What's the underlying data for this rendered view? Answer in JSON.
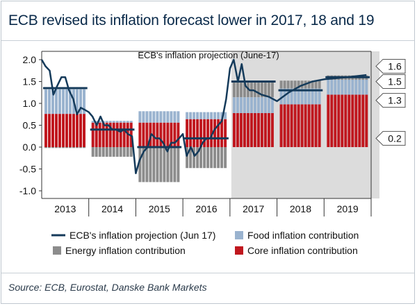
{
  "title": "ECB revised its inflation forecast lower in 2017, 18 and 19",
  "source": "Source: ECB, Eurostat, Danske Bank Markets",
  "colors": {
    "core": "#c0171e",
    "food": "#9ab3cf",
    "energy": "#8c8c8c",
    "line": "#143a5a",
    "forecast_shade": "#dcdcdc"
  },
  "chart_data": {
    "type": "bar",
    "title": "ECB's inflation projection (June-17)",
    "ylim": [
      -1.0,
      2.0
    ],
    "yticks": [
      "2.0",
      "1.5",
      "1.0",
      "0.5",
      "0.0",
      "-0.5",
      "-1.0"
    ],
    "ytick_values": [
      2.0,
      1.5,
      1.0,
      0.5,
      0.0,
      -0.5,
      -1.0
    ],
    "categories": [
      "2013",
      "2014",
      "2015",
      "2016",
      "2017",
      "2018",
      "2019"
    ],
    "forecast_start": "2017",
    "legend": [
      {
        "name": "ECB's inflation projection (Jun 17)",
        "kind": "line"
      },
      {
        "name": "Food inflation contribution",
        "kind": "food"
      },
      {
        "name": "Energy inflation contribution",
        "kind": "energy"
      },
      {
        "name": "Core inflation contribution",
        "kind": "core"
      }
    ],
    "series": [
      {
        "name": "Core inflation contribution",
        "values": [
          0.76,
          0.56,
          0.56,
          0.64,
          0.78,
          0.98,
          1.2
        ]
      },
      {
        "name": "Food inflation contribution",
        "values": [
          0.56,
          0.04,
          0.26,
          0.16,
          0.36,
          0.36,
          0.34
        ]
      },
      {
        "name": "Energy inflation contribution",
        "values": [
          -0.02,
          -0.22,
          -0.8,
          -0.48,
          0.38,
          0.18,
          0.1
        ]
      }
    ],
    "annual_projection": [
      1.35,
      0.4,
      0.0,
      0.2,
      1.5,
      1.3,
      1.6
    ],
    "projection_labels": [
      {
        "text": "1.6",
        "y": 1.6
      },
      {
        "text": "1.5",
        "y": 1.5
      },
      {
        "text": "1.3",
        "y": 1.3
      },
      {
        "text": "0.2",
        "y": 0.2
      }
    ],
    "monthly_inflation": {
      "x": [
        2013.0,
        2013.08,
        2013.17,
        2013.25,
        2013.33,
        2013.42,
        2013.5,
        2013.58,
        2013.67,
        2013.75,
        2013.83,
        2013.92,
        2014.0,
        2014.08,
        2014.17,
        2014.25,
        2014.33,
        2014.42,
        2014.5,
        2014.58,
        2014.67,
        2014.75,
        2014.83,
        2014.92,
        2015.0,
        2015.08,
        2015.17,
        2015.25,
        2015.33,
        2015.42,
        2015.5,
        2015.58,
        2015.67,
        2015.75,
        2015.83,
        2015.92,
        2016.0,
        2016.08,
        2016.17,
        2016.25,
        2016.33,
        2016.42,
        2016.5,
        2016.58,
        2016.67,
        2016.75,
        2016.83,
        2016.92,
        2017.0,
        2017.08,
        2017.17,
        2017.25,
        2017.33,
        2017.42,
        2017.5,
        2017.67,
        2017.83,
        2018.0,
        2018.25,
        2018.5,
        2018.75,
        2019.0,
        2019.5,
        2019.9
      ],
      "y": [
        2.0,
        1.85,
        1.75,
        1.2,
        1.4,
        1.6,
        1.6,
        1.3,
        1.1,
        0.75,
        0.9,
        0.85,
        0.8,
        0.7,
        0.5,
        0.7,
        0.5,
        0.5,
        0.4,
        0.4,
        0.35,
        0.4,
        0.3,
        0.25,
        -0.6,
        -0.3,
        -0.1,
        0.0,
        0.3,
        0.2,
        0.2,
        0.1,
        -0.1,
        0.1,
        0.1,
        0.2,
        0.3,
        -0.2,
        0.0,
        -0.2,
        -0.1,
        0.1,
        0.2,
        0.2,
        0.4,
        0.5,
        0.6,
        1.1,
        1.8,
        2.0,
        1.5,
        1.9,
        1.4,
        1.3,
        1.3,
        1.2,
        1.15,
        1.05,
        1.25,
        1.4,
        1.5,
        1.55,
        1.6,
        1.65
      ]
    }
  }
}
